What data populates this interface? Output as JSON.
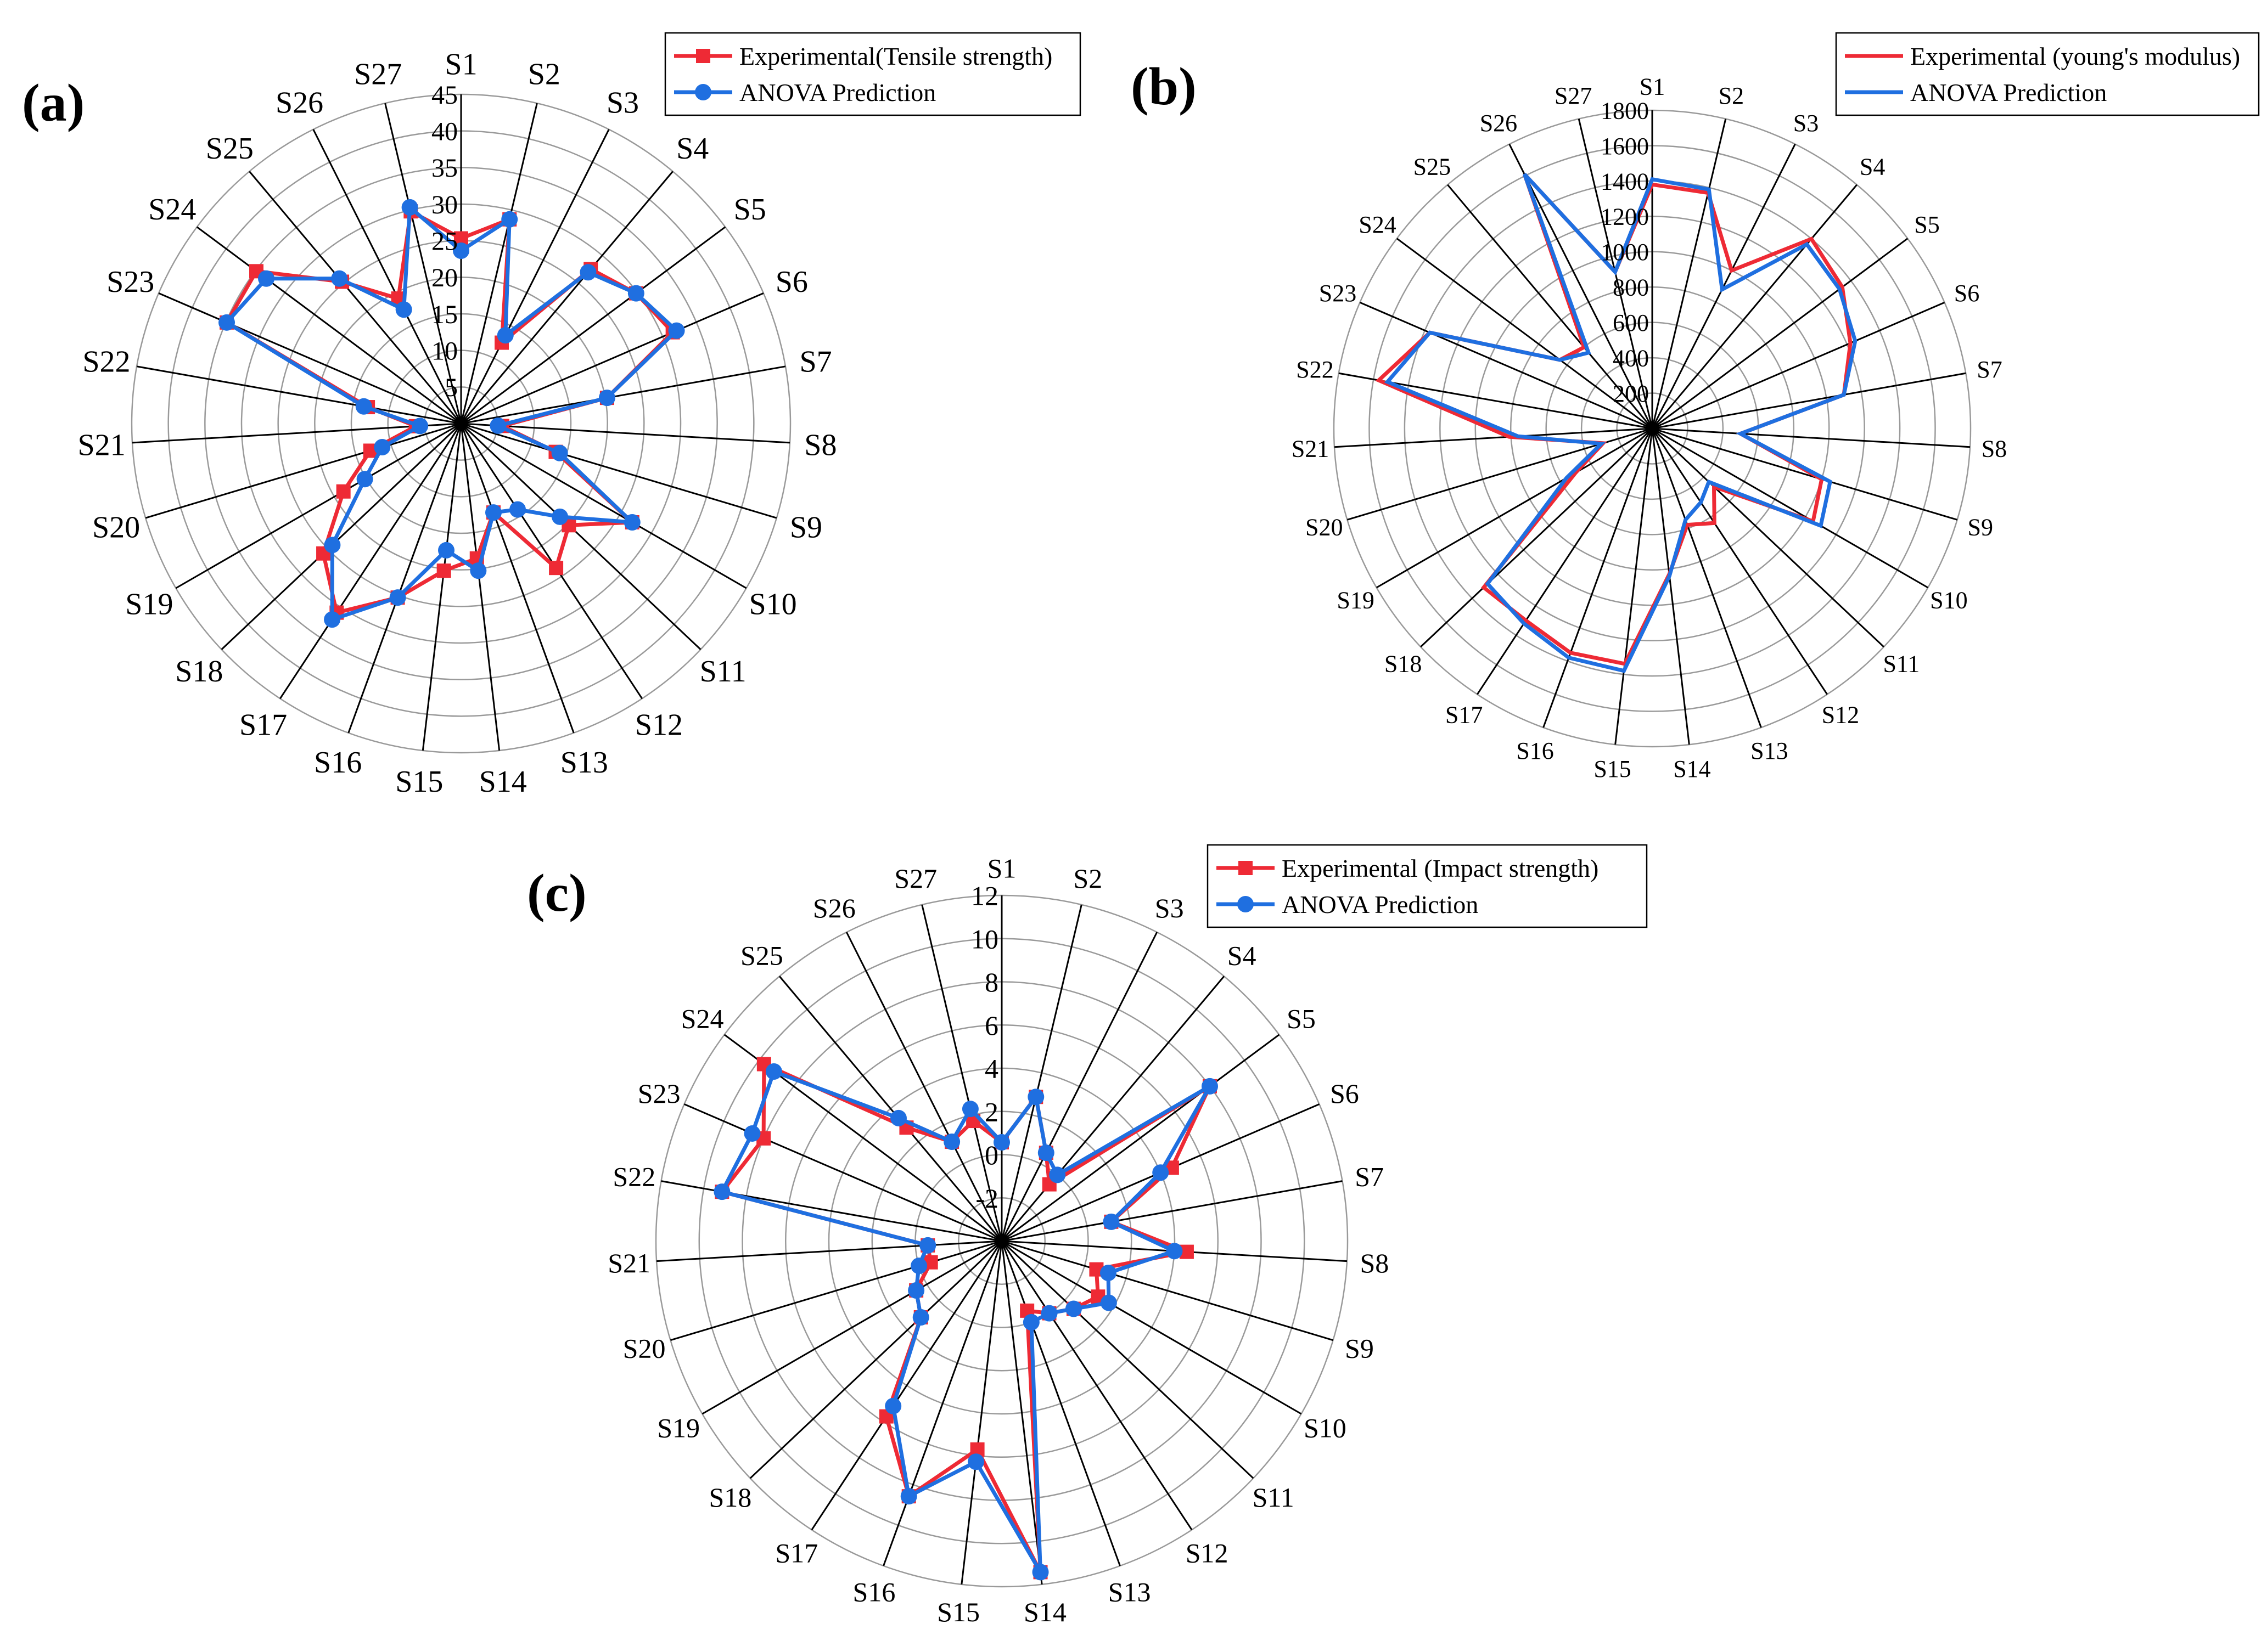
{
  "colors": {
    "experimental": "#ee2a35",
    "prediction": "#1f6fe0",
    "grid": "#9a9a9a",
    "spoke": "#000000",
    "background": "#ffffff"
  },
  "chart_data": [
    {
      "type": "radar",
      "panel_label": "(a)",
      "categories": [
        "S1",
        "S2",
        "S3",
        "S4",
        "S5",
        "S6",
        "S7",
        "S8",
        "S9",
        "S10",
        "S11",
        "S12",
        "S13",
        "S14",
        "S15",
        "S16",
        "S17",
        "S18",
        "S19",
        "S20",
        "S21",
        "S22",
        "S23",
        "S24",
        "S25",
        "S26",
        "S27"
      ],
      "radial_ticks": [
        "5",
        "10",
        "15",
        "20",
        "25",
        "30",
        "35",
        "40",
        "45"
      ],
      "rlim": [
        5,
        45
      ],
      "markers": true,
      "legend_position": "top-right",
      "series": [
        {
          "name": "Experimental(Tensile strength)",
          "color": "#ee2a35",
          "marker": "square",
          "values": [
            27.5,
            30.5,
            16,
            29.5,
            31.5,
            33,
            23,
            10,
            17,
            29,
            23,
            26,
            16.5,
            21.5,
            23,
            27.5,
            32.5,
            28,
            21.5,
            16.5,
            10.5,
            16.5,
            36,
            36,
            27.5,
            22,
            31.5
          ]
        },
        {
          "name": "ANOVA Prediction",
          "color": "#1f6fe0",
          "marker": "circle",
          "values": [
            26,
            30.5,
            17,
            29,
            31.5,
            33.5,
            23,
            9.5,
            17.5,
            29,
            21.5,
            17.5,
            16.5,
            23,
            20.5,
            27.5,
            33.5,
            26.5,
            18.5,
            15,
            10,
            17,
            36,
            34.5,
            28,
            20.5,
            32
          ]
        }
      ]
    },
    {
      "type": "radar",
      "panel_label": "(b)",
      "categories": [
        "S1",
        "S2",
        "S3",
        "S4",
        "S5",
        "S6",
        "S7",
        "S8",
        "S9",
        "S10",
        "S11",
        "S12",
        "S13",
        "S14",
        "S15",
        "S16",
        "S17",
        "S18",
        "S19",
        "S20",
        "S21",
        "S22",
        "S23",
        "S24",
        "S25",
        "S26",
        "S27"
      ],
      "radial_ticks": [
        "200",
        "400",
        "600",
        "800",
        "1000",
        "1200",
        "1400",
        "1600",
        "1800"
      ],
      "rlim": [
        0,
        1800
      ],
      "markers": false,
      "legend_position": "top-right",
      "series": [
        {
          "name": "Experimental (young's modulus)",
          "color": "#ee2a35",
          "values": [
            1380,
            1370,
            1000,
            1400,
            1340,
            1220,
            1100,
            500,
            1000,
            1050,
            480,
            640,
            580,
            830,
            1340,
            1350,
            1300,
            1310,
            500,
            290,
            810,
            1570,
            1370,
            650,
            600,
            1610,
            910
          ]
        },
        {
          "name": "ANOVA Prediction",
          "color": "#1f6fe0",
          "values": [
            1410,
            1390,
            880,
            1360,
            1320,
            1250,
            1100,
            500,
            1050,
            1100,
            440,
            500,
            550,
            840,
            1380,
            1380,
            1320,
            1280,
            560,
            300,
            760,
            1520,
            1370,
            650,
            560,
            1610,
            910
          ]
        }
      ]
    },
    {
      "type": "radar",
      "panel_label": "(c)",
      "categories": [
        "S1",
        "S2",
        "S3",
        "S4",
        "S5",
        "S6",
        "S7",
        "S8",
        "S9",
        "S10",
        "S11",
        "S12",
        "S13",
        "S14",
        "S15",
        "S16",
        "S17",
        "S18",
        "S19",
        "S20",
        "S21",
        "S22",
        "S23",
        "S24",
        "S25",
        "S26",
        "S27"
      ],
      "radial_ticks": [
        "-2",
        "0",
        "2",
        "4",
        "6",
        "8",
        "10",
        "12"
      ],
      "rlim": [
        -2,
        12
      ],
      "markers": true,
      "legend_position": "top-right",
      "series": [
        {
          "name": "Experimental (Impact strength)",
          "color": "#ee2a35",
          "marker": "square",
          "values": [
            2,
            4,
            2,
            1,
            8.5,
            5.5,
            2.5,
            5.5,
            2,
            2.5,
            2,
            1.5,
            1,
            11.5,
            6.5,
            9,
            6.5,
            2.5,
            2,
            1,
            1,
            9.5,
            8.5,
            10,
            4,
            2.5,
            3
          ]
        },
        {
          "name": "ANOVA Prediction",
          "color": "#1f6fe0",
          "marker": "circle",
          "values": [
            2,
            4,
            2,
            1.5,
            8.5,
            5,
            2.5,
            5,
            2.5,
            3,
            2,
            1.5,
            1.5,
            11.5,
            7,
            9,
            6,
            2.5,
            2,
            1.5,
            1,
            9.5,
            9,
            9.5,
            4.5,
            2.5,
            3.5
          ]
        }
      ]
    }
  ]
}
